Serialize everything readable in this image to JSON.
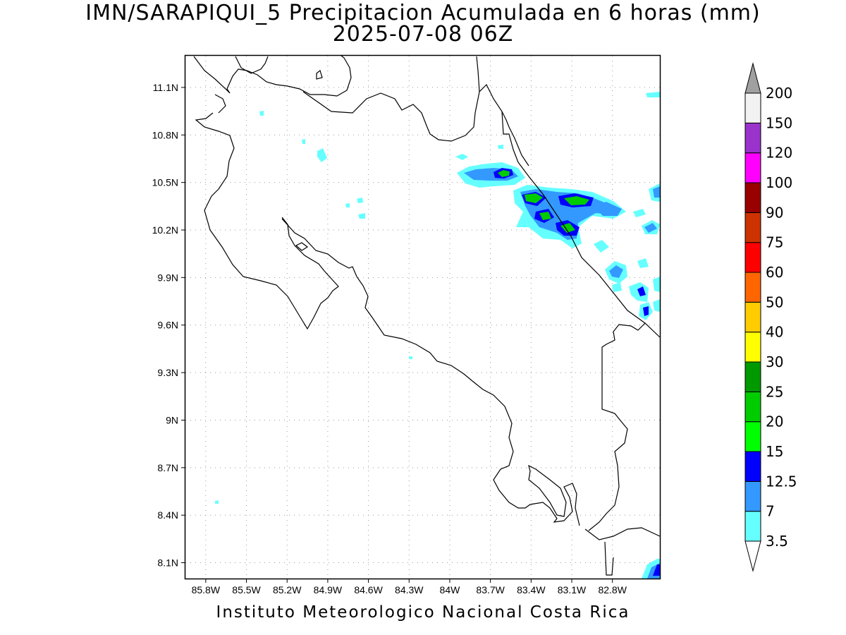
{
  "title": {
    "line1": "IMN/SARAPIQUI_5 Precipitacion Acumulada en 6 horas (mm)",
    "line2": "2025-07-08 06Z"
  },
  "footer": "Instituto Meteorologico Nacional Costa Rica",
  "map": {
    "type": "filled-contour-map",
    "region": "Costa Rica",
    "grid": true,
    "lon_range": [
      -85.95,
      -82.45
    ],
    "lat_range": [
      8.0,
      11.3
    ],
    "x_ticks": [
      "85.8W",
      "85.5W",
      "85.2W",
      "84.9W",
      "84.6W",
      "84.3W",
      "84W",
      "83.7W",
      "83.4W",
      "83.1W",
      "82.8W"
    ],
    "y_ticks": [
      "11.1N",
      "10.8N",
      "10.5N",
      "10.2N",
      "9.9N",
      "9.6N",
      "9.3N",
      "9N",
      "8.7N",
      "8.4N",
      "8.1N"
    ]
  },
  "colorbar": {
    "labels": [
      "3.5",
      "7",
      "12.5",
      "15",
      "20",
      "25",
      "30",
      "40",
      "50",
      "60",
      "75",
      "90",
      "100",
      "120",
      "150",
      "200"
    ],
    "colors": [
      "#66ffff",
      "#3399ff",
      "#0000ff",
      "#00ff00",
      "#00cc00",
      "#009900",
      "#ffff00",
      "#ffcc00",
      "#ff6600",
      "#ff0000",
      "#cc3300",
      "#990000",
      "#ff00ff",
      "#9933cc",
      "#f2f2f2",
      "#a0a0a0"
    ]
  }
}
